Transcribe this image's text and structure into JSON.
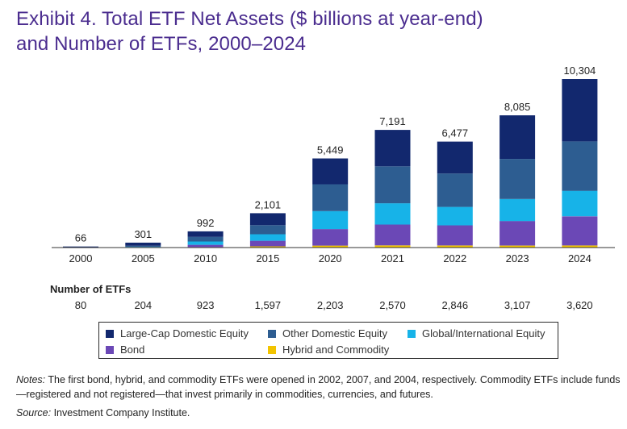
{
  "title": {
    "line1": "Exhibit 4. Total ETF Net Assets ($ billions at year-end)",
    "line2": "and Number of ETFs, 2000–2024"
  },
  "chart_data": {
    "type": "bar",
    "stacked": true,
    "categories": [
      "2000",
      "2005",
      "2010",
      "2015",
      "2020",
      "2021",
      "2022",
      "2023",
      "2024"
    ],
    "totals": [
      66,
      301,
      992,
      2101,
      5449,
      7191,
      6477,
      8085,
      10304
    ],
    "total_labels": [
      "66",
      "301",
      "992",
      "2,101",
      "5,449",
      "7,191",
      "6,477",
      "8,085",
      "10,304"
    ],
    "series": [
      {
        "name": "Hybrid and Commodity",
        "color": "#f2c400",
        "values": [
          0,
          0,
          30,
          75,
          120,
          135,
          125,
          120,
          130
        ]
      },
      {
        "name": "Bond",
        "color": "#6b48b6",
        "values": [
          0,
          0,
          140,
          340,
          1010,
          1270,
          1230,
          1500,
          1780
        ]
      },
      {
        "name": "Global/International Equity",
        "color": "#17b3e8",
        "values": [
          5,
          40,
          200,
          400,
          1100,
          1300,
          1130,
          1350,
          1560
        ]
      },
      {
        "name": "Other Domestic Equity",
        "color": "#2d5d91",
        "values": [
          10,
          70,
          280,
          550,
          1640,
          2260,
          2040,
          2450,
          3020
        ]
      },
      {
        "name": "Large-Cap Domestic Equity",
        "color": "#12286e",
        "values": [
          51,
          191,
          342,
          736,
          1579,
          2226,
          1952,
          2665,
          3814
        ]
      }
    ],
    "ylim": [
      0,
      10304
    ],
    "grid": false
  },
  "etf_counts": {
    "header": "Number of ETFs",
    "values": [
      "80",
      "204",
      "923",
      "1,597",
      "2,203",
      "2,570",
      "2,846",
      "3,107",
      "3,620"
    ]
  },
  "legend": {
    "items": [
      {
        "label": "Large-Cap Domestic Equity",
        "color": "#12286e"
      },
      {
        "label": "Other Domestic Equity",
        "color": "#2d5d91"
      },
      {
        "label": "Global/International Equity",
        "color": "#17b3e8"
      },
      {
        "label": "Bond",
        "color": "#6b48b6"
      },
      {
        "label": "Hybrid and Commodity",
        "color": "#f2c400"
      }
    ]
  },
  "notes": {
    "label": "Notes:",
    "text": " The first bond, hybrid, and commodity ETFs were opened in 2002, 2007, and 2004, respectively. Commodity ETFs include funds—registered and not registered—that invest primarily in commodities, currencies, and futures."
  },
  "source": {
    "label": "Source:",
    "text": " Investment Company Institute."
  }
}
